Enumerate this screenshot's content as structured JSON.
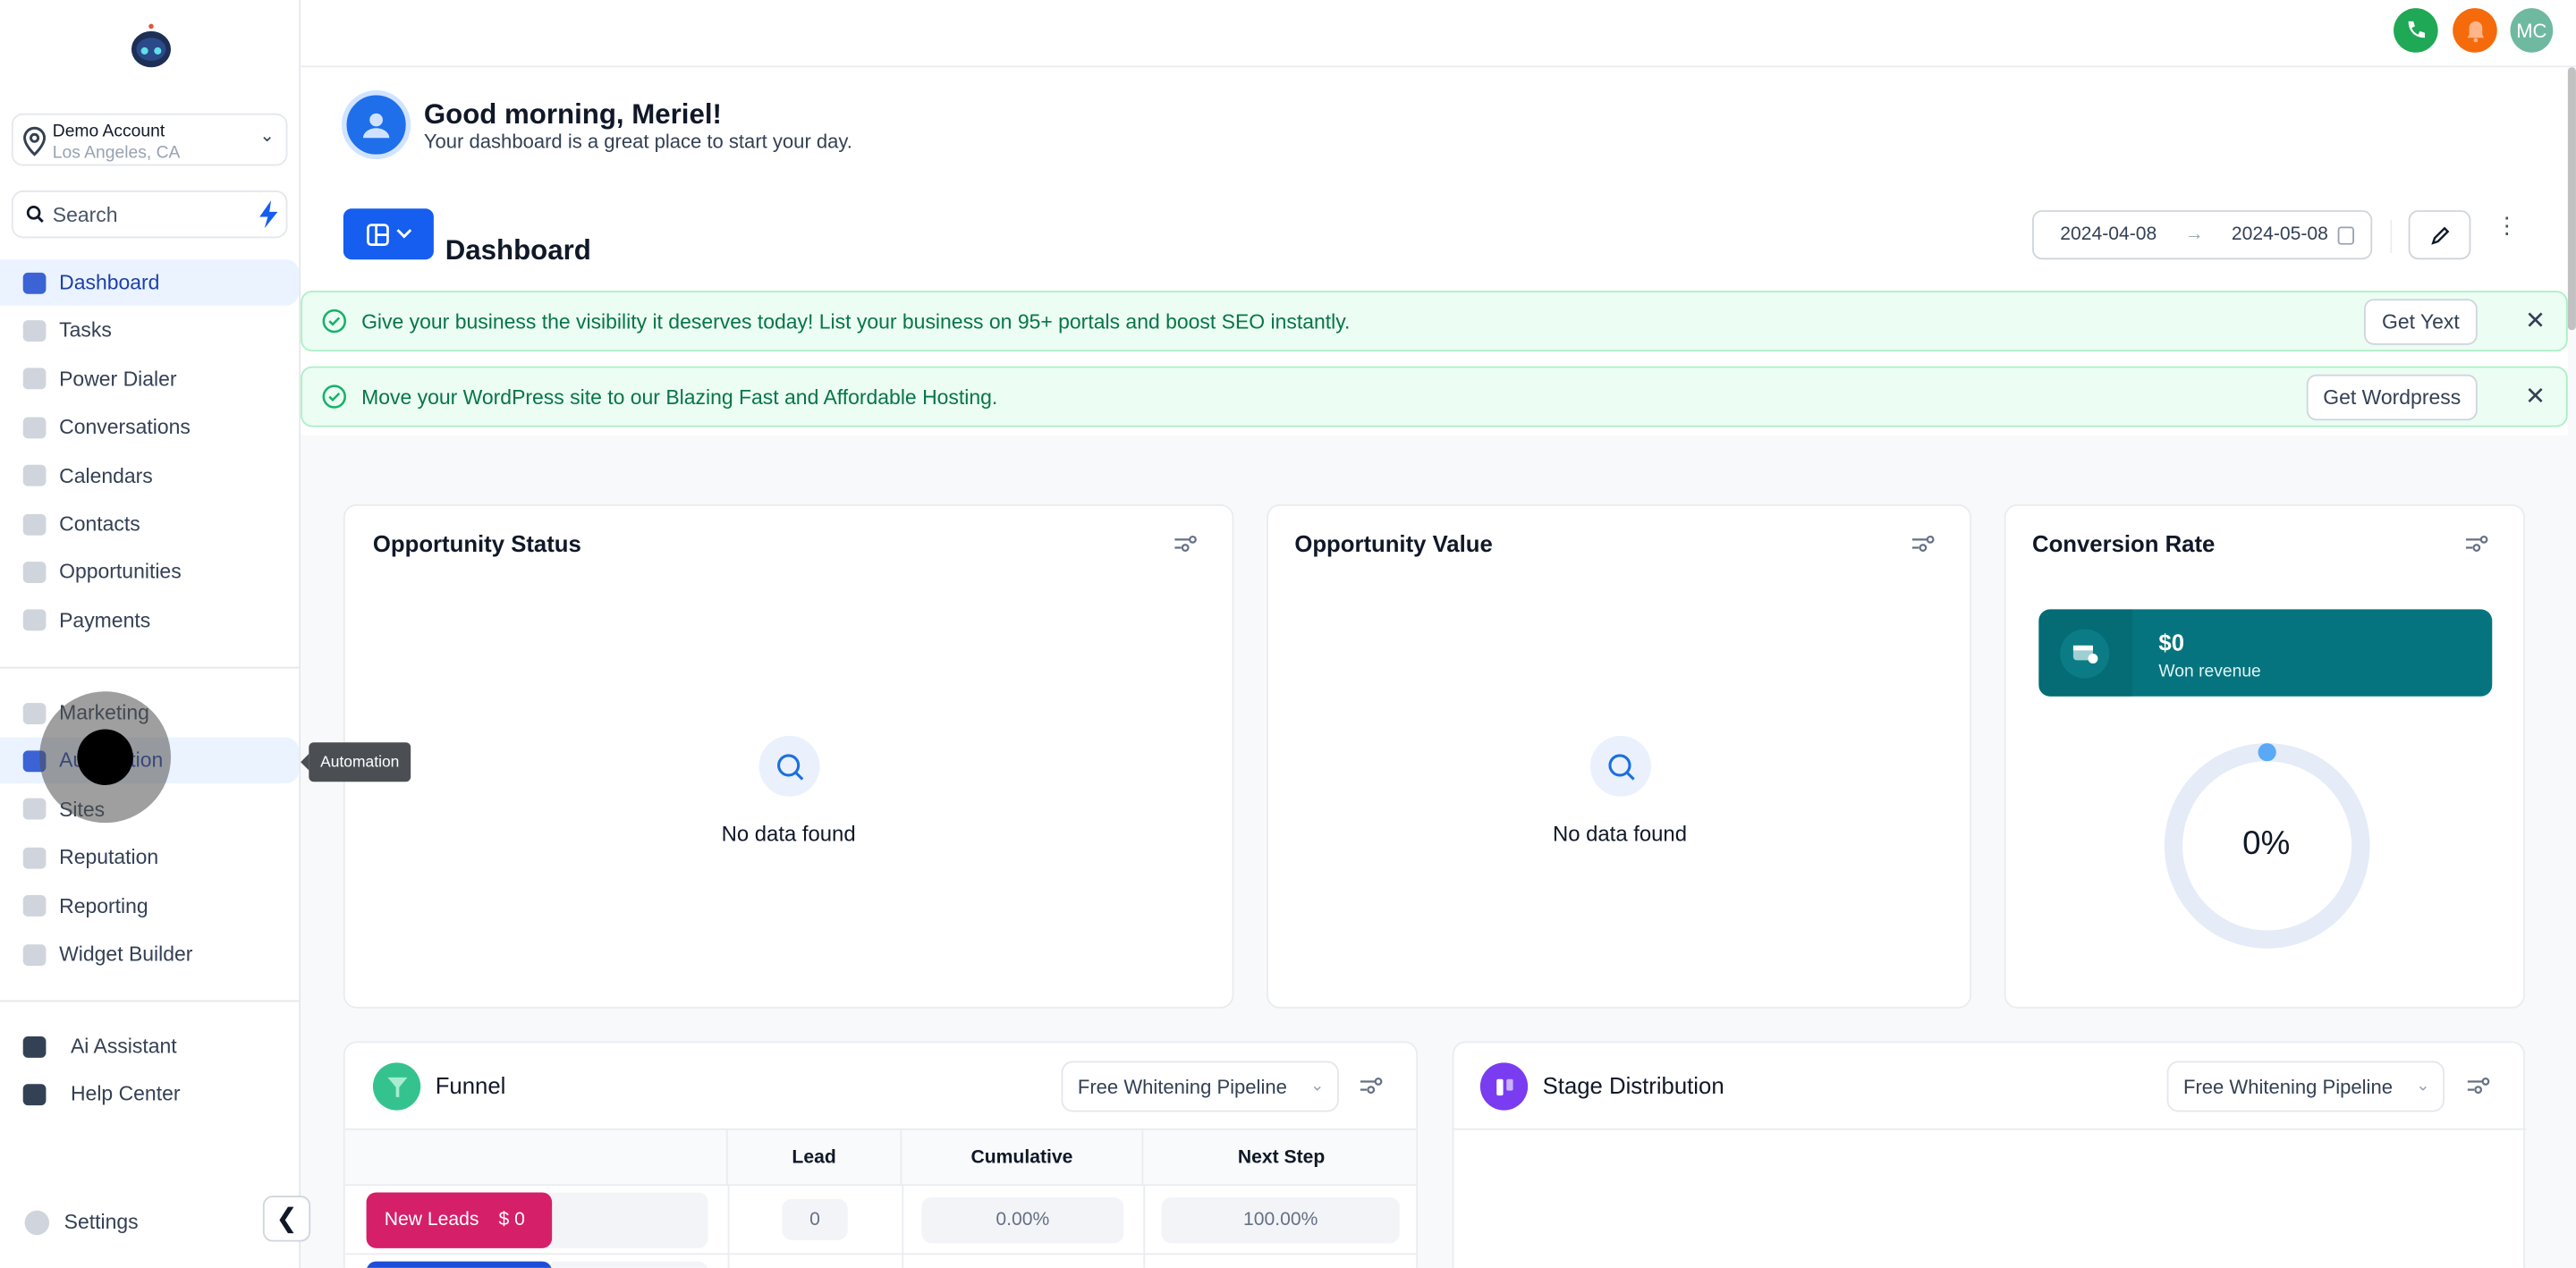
{
  "sidebar": {
    "logo": "robot-logo",
    "account": {
      "name": "Demo Account",
      "location": "Los Angeles, CA"
    },
    "search_placeholder": "Search",
    "items": [
      {
        "label": "Dashboard",
        "icon": "dashboard-icon",
        "active": true
      },
      {
        "label": "Tasks",
        "icon": "tasks-icon"
      },
      {
        "label": "Power Dialer",
        "icon": "power-dialer-icon"
      },
      {
        "label": "Conversations",
        "icon": "conversations-icon"
      },
      {
        "label": "Calendars",
        "icon": "calendar-icon"
      },
      {
        "label": "Contacts",
        "icon": "contacts-icon"
      },
      {
        "label": "Opportunities",
        "icon": "opportunities-icon"
      },
      {
        "label": "Payments",
        "icon": "payments-icon"
      }
    ],
    "items2": [
      {
        "label": "Marketing",
        "icon": "marketing-icon"
      },
      {
        "label": "Automation",
        "icon": "automation-icon",
        "active": true
      },
      {
        "label": "Sites",
        "icon": "sites-icon"
      },
      {
        "label": "Reputation",
        "icon": "reputation-icon"
      },
      {
        "label": "Reporting",
        "icon": "reporting-icon"
      },
      {
        "label": "Widget Builder",
        "icon": "widget-builder-icon"
      }
    ],
    "items3": [
      {
        "label": "Ai Assistant",
        "icon": "robot-icon"
      },
      {
        "label": "Help Center",
        "icon": "question-icon"
      }
    ],
    "settings": "Settings",
    "tooltip": "Automation"
  },
  "topbar": {
    "avatar_initials": "MC",
    "colors": {
      "phone": "#1fa855",
      "bell": "#f56a0a",
      "avatar": "#6fb9a0"
    }
  },
  "greeting": {
    "title": "Good morning, Meriel!",
    "subtitle": "Your dashboard is a great place to start your day."
  },
  "dashboard": {
    "title": "Dashboard",
    "date_from": "2024-04-08",
    "date_to": "2024-05-08"
  },
  "banners": [
    {
      "text": "Give your business the visibility it deserves today! List your business on 95+ portals and boost SEO instantly.",
      "button": "Get Yext"
    },
    {
      "text": "Move your WordPress site to our Blazing Fast and Affordable Hosting.",
      "button": "Get Wordpress"
    }
  ],
  "cards": {
    "opportunity_status": {
      "title": "Opportunity Status",
      "empty": "No data found"
    },
    "opportunity_value": {
      "title": "Opportunity Value",
      "empty": "No data found"
    },
    "conversion_rate": {
      "title": "Conversion Rate",
      "revenue": "$0",
      "revenue_label": "Won revenue",
      "rate": "0%",
      "rate_value": 0
    }
  },
  "funnel": {
    "title": "Funnel",
    "pipeline": "Free Whitening Pipeline",
    "columns": [
      "Lead",
      "Cumulative",
      "Next Step"
    ],
    "rows": [
      {
        "stage": "New Leads",
        "value": "$ 0",
        "lead": "0",
        "cumulative": "0.00%",
        "next_step": "100.00%",
        "color": "#d61f69"
      }
    ]
  },
  "stage_distribution": {
    "title": "Stage Distribution",
    "pipeline": "Free Whitening Pipeline"
  },
  "colors": {
    "accent": "#155eef",
    "teal": "#06747e",
    "banner_green": "#067647"
  }
}
